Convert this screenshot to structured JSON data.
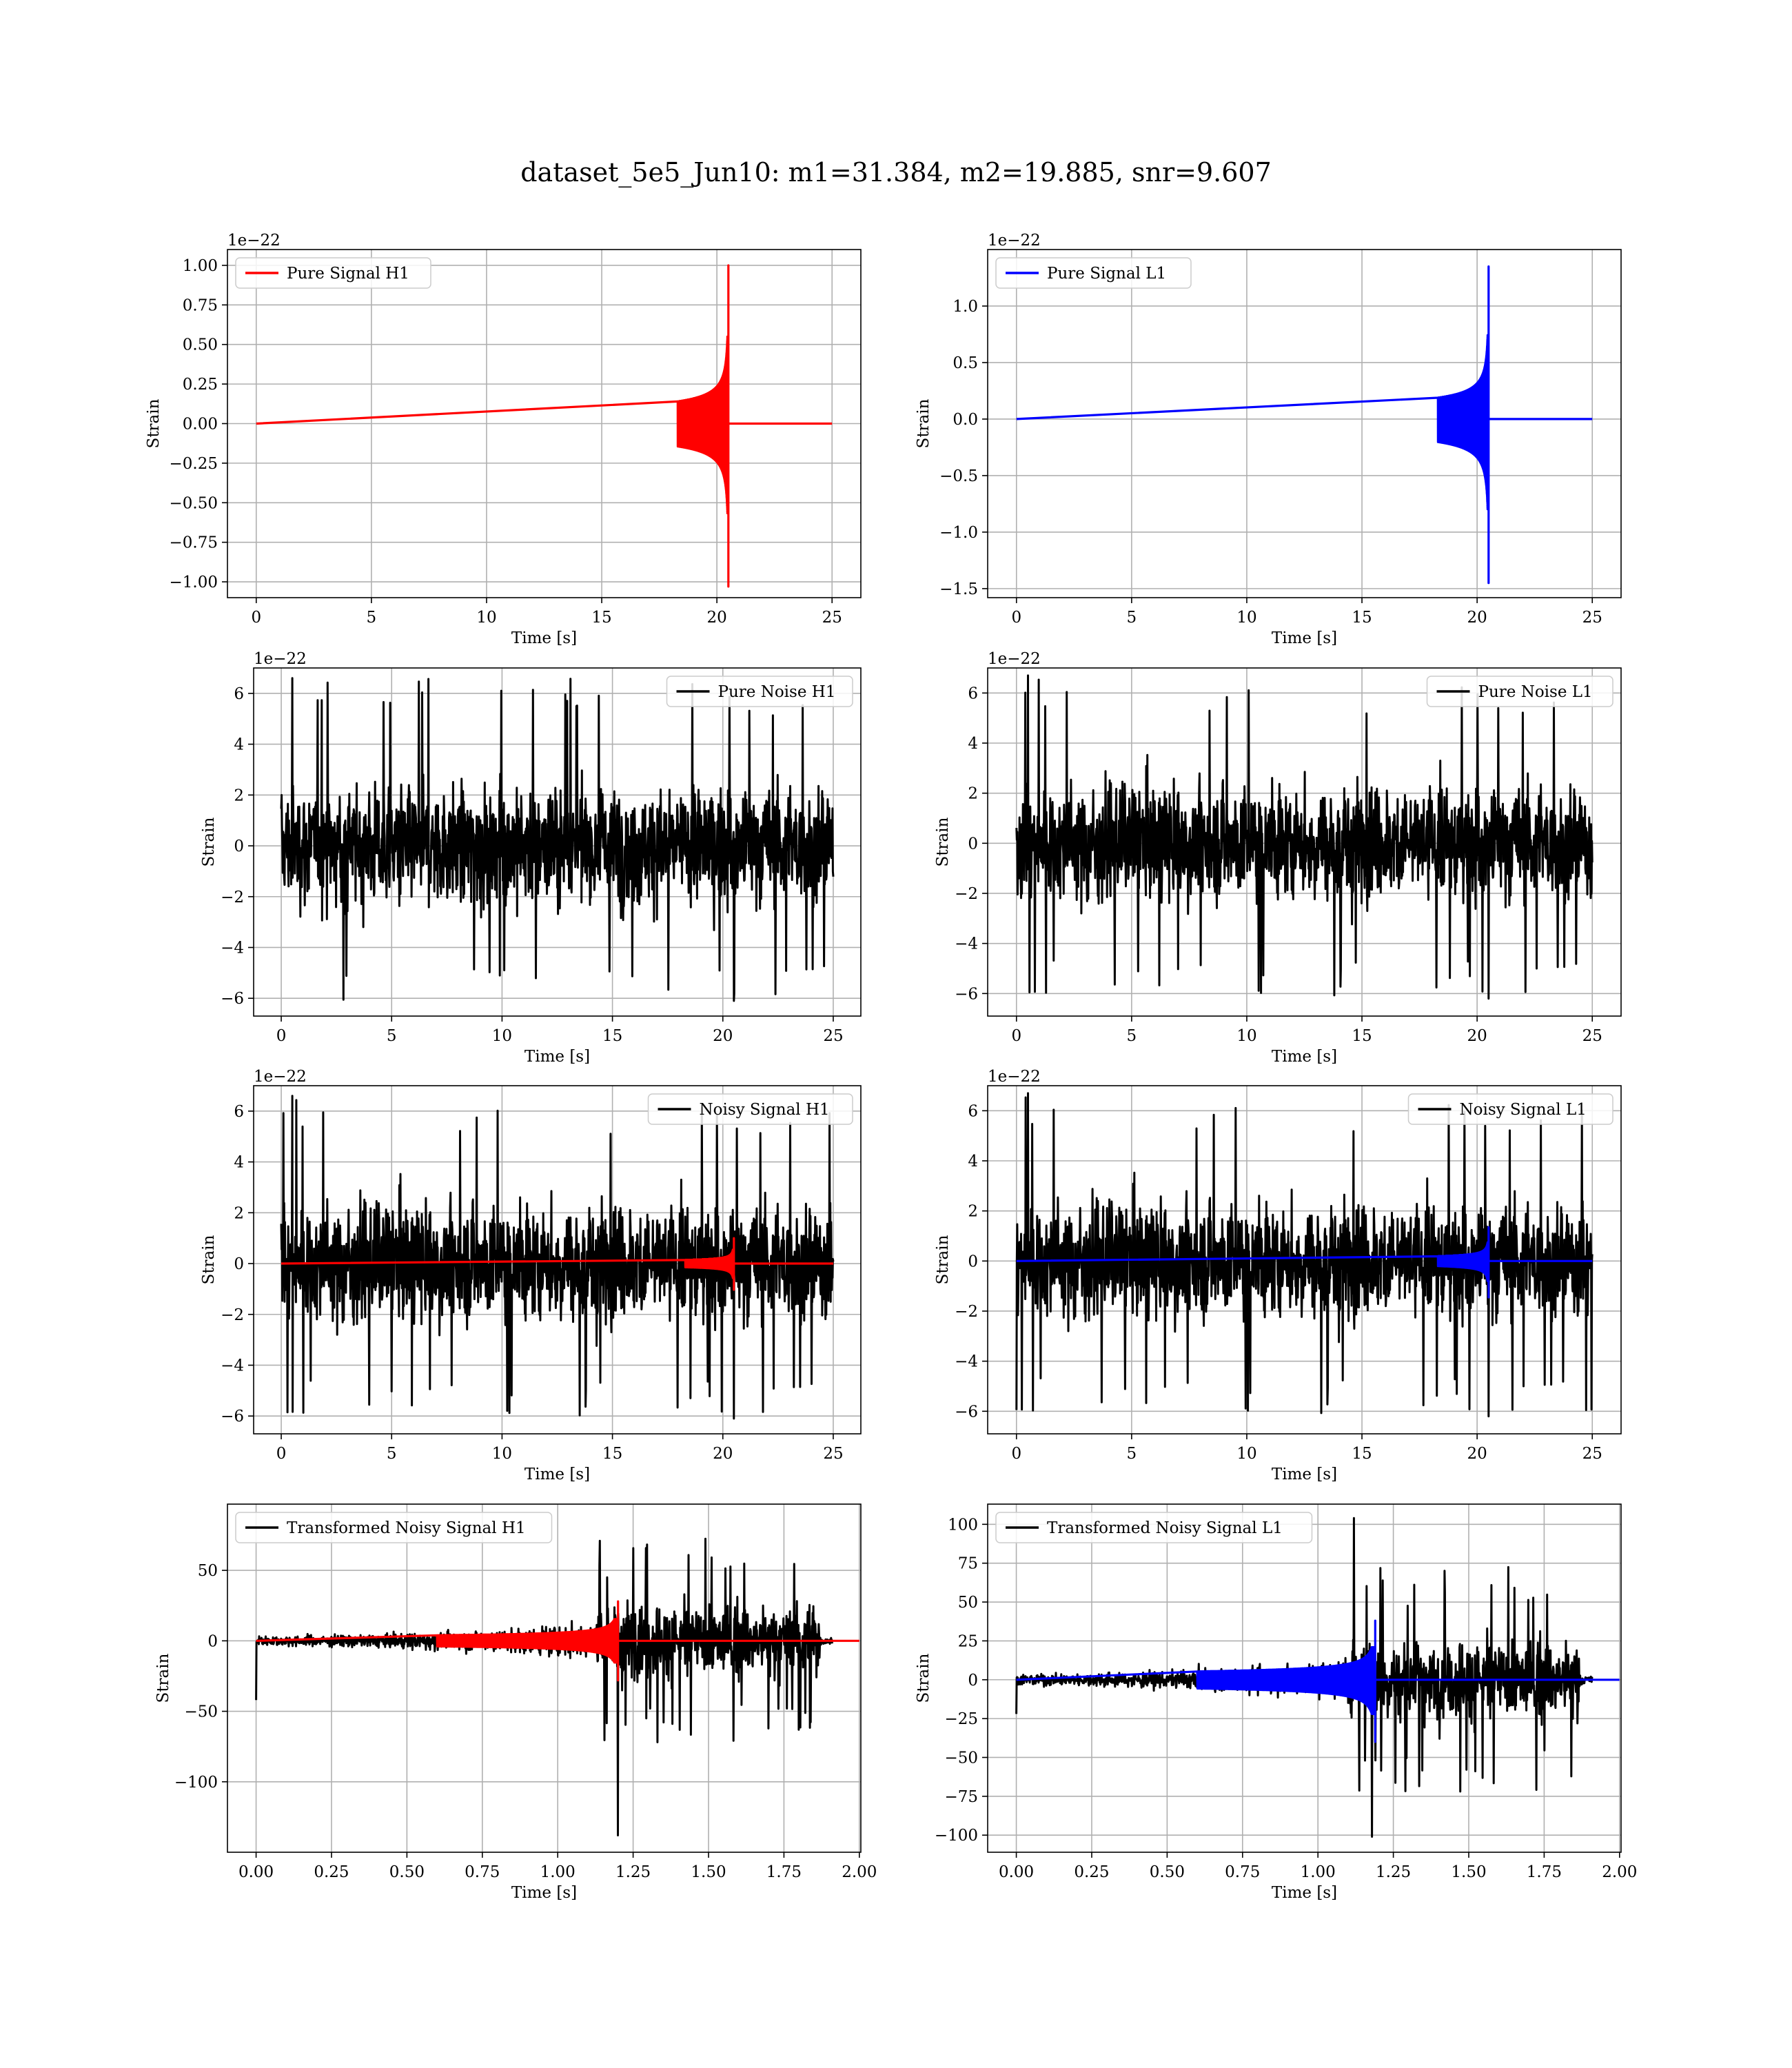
{
  "suptitle": "dataset_5e5_Jun10: m1=31.384, m2=19.885, snr=9.607",
  "chart_data": [
    {
      "type": "line",
      "legend": [
        "Pure Signal H1"
      ],
      "legend_loc": "upper-left",
      "series": [
        {
          "name": "Pure Signal H1",
          "color": "#ff0000",
          "kind": "chirp",
          "peak_time": 20.5,
          "pos_amp": 1.0,
          "neg_amp": -1.03
        }
      ],
      "xlabel": "Time [s]",
      "ylabel": "Strain",
      "offset": "1e−22",
      "xlim": [
        -1.25,
        26.25
      ],
      "ylim": [
        -1.1,
        1.1
      ],
      "xticks": [
        0,
        5,
        10,
        15,
        20,
        25
      ],
      "xticklabels": [
        "0",
        "5",
        "10",
        "15",
        "20",
        "25"
      ],
      "yticks": [
        1.0,
        0.75,
        0.5,
        0.25,
        0.0,
        -0.25,
        -0.5,
        -0.75,
        -1.0
      ],
      "yticklabels": [
        "1.00",
        "0.75",
        "0.50",
        "0.25",
        "0.00",
        "−0.25",
        "−0.50",
        "−0.75",
        "−1.00"
      ],
      "grid": true
    },
    {
      "type": "line",
      "legend": [
        "Pure Signal L1"
      ],
      "legend_loc": "upper-left",
      "series": [
        {
          "name": "Pure Signal L1",
          "color": "#0000ff",
          "kind": "chirp",
          "peak_time": 20.5,
          "pos_amp": 1.35,
          "neg_amp": -1.45
        }
      ],
      "xlabel": "Time [s]",
      "ylabel": "Strain",
      "offset": "1e−22",
      "xlim": [
        -1.25,
        26.25
      ],
      "ylim": [
        -1.58,
        1.5
      ],
      "xticks": [
        0,
        5,
        10,
        15,
        20,
        25
      ],
      "xticklabels": [
        "0",
        "5",
        "10",
        "15",
        "20",
        "25"
      ],
      "yticks": [
        1.0,
        0.5,
        0.0,
        -0.5,
        -1.0,
        -1.5
      ],
      "yticklabels": [
        "1.0",
        "0.5",
        "0.0",
        "−0.5",
        "−1.0",
        "−1.5"
      ],
      "grid": true
    },
    {
      "type": "line",
      "legend": [
        "Pure Noise H1"
      ],
      "legend_loc": "upper-right",
      "series": [
        {
          "name": "Pure Noise H1",
          "color": "#000000",
          "kind": "noise",
          "t_start": 0,
          "t_end": 25,
          "max": 6.6,
          "min": -6.1
        }
      ],
      "xlabel": "Time [s]",
      "ylabel": "Strain",
      "offset": "1e−22",
      "xlim": [
        -1.25,
        26.25
      ],
      "ylim": [
        -6.7,
        7.0
      ],
      "xticks": [
        0,
        5,
        10,
        15,
        20,
        25
      ],
      "xticklabels": [
        "0",
        "5",
        "10",
        "15",
        "20",
        "25"
      ],
      "yticks": [
        6,
        4,
        2,
        0,
        -2,
        -4,
        -6
      ],
      "yticklabels": [
        "6",
        "4",
        "2",
        "0",
        "−2",
        "−4",
        "−6"
      ],
      "grid": true
    },
    {
      "type": "line",
      "legend": [
        "Pure Noise L1"
      ],
      "legend_loc": "upper-right",
      "series": [
        {
          "name": "Pure Noise L1",
          "color": "#000000",
          "kind": "noise",
          "t_start": 0,
          "t_end": 25,
          "max": 6.7,
          "min": -6.2
        }
      ],
      "xlabel": "Time [s]",
      "ylabel": "Strain",
      "offset": "1e−22",
      "xlim": [
        -1.25,
        26.25
      ],
      "ylim": [
        -6.9,
        7.0
      ],
      "xticks": [
        0,
        5,
        10,
        15,
        20,
        25
      ],
      "xticklabels": [
        "0",
        "5",
        "10",
        "15",
        "20",
        "25"
      ],
      "yticks": [
        6,
        4,
        2,
        0,
        -2,
        -4,
        -6
      ],
      "yticklabels": [
        "6",
        "4",
        "2",
        "0",
        "−2",
        "−4",
        "−6"
      ],
      "grid": true
    },
    {
      "type": "line",
      "legend": [
        "Noisy Signal H1"
      ],
      "legend_loc": "upper-right",
      "series": [
        {
          "name": "Noisy Signal H1",
          "color": "#000000",
          "kind": "noise",
          "t_start": 0,
          "t_end": 25,
          "max": 6.6,
          "min": -6.1
        },
        {
          "color": "#ff0000",
          "kind": "chirp",
          "peak_time": 20.5,
          "pos_amp": 1.0,
          "neg_amp": -1.03
        }
      ],
      "xlabel": "Time [s]",
      "ylabel": "Strain",
      "offset": "1e−22",
      "xlim": [
        -1.25,
        26.25
      ],
      "ylim": [
        -6.7,
        7.0
      ],
      "xticks": [
        0,
        5,
        10,
        15,
        20,
        25
      ],
      "xticklabels": [
        "0",
        "5",
        "10",
        "15",
        "20",
        "25"
      ],
      "yticks": [
        6,
        4,
        2,
        0,
        -2,
        -4,
        -6
      ],
      "yticklabels": [
        "6",
        "4",
        "2",
        "0",
        "−2",
        "−4",
        "−6"
      ],
      "grid": true
    },
    {
      "type": "line",
      "legend": [
        "Noisy Signal L1"
      ],
      "legend_loc": "upper-right",
      "series": [
        {
          "name": "Noisy Signal L1",
          "color": "#000000",
          "kind": "noise",
          "t_start": 0,
          "t_end": 25,
          "max": 6.7,
          "min": -6.2
        },
        {
          "color": "#0000ff",
          "kind": "chirp",
          "peak_time": 20.5,
          "pos_amp": 1.35,
          "neg_amp": -1.45
        }
      ],
      "xlabel": "Time [s]",
      "ylabel": "Strain",
      "offset": "1e−22",
      "xlim": [
        -1.25,
        26.25
      ],
      "ylim": [
        -6.9,
        7.0
      ],
      "xticks": [
        0,
        5,
        10,
        15,
        20,
        25
      ],
      "xticklabels": [
        "0",
        "5",
        "10",
        "15",
        "20",
        "25"
      ],
      "yticks": [
        6,
        4,
        2,
        0,
        -2,
        -4,
        -6
      ],
      "yticklabels": [
        "6",
        "4",
        "2",
        "0",
        "−2",
        "−4",
        "−6"
      ],
      "grid": true
    },
    {
      "type": "line",
      "legend": [
        "Transformed Noisy Signal H1"
      ],
      "legend_loc": "upper-left",
      "series": [
        {
          "name": "Transformed Noisy Signal H1",
          "color": "#000000",
          "kind": "transformed",
          "t_start": 0,
          "t_end": 1.91,
          "burst_start": 1.12,
          "burst_end": 1.87,
          "max": 71,
          "min": -138,
          "spike_time": 0.0,
          "spike_value": -42
        },
        {
          "color": "#ff0000",
          "kind": "chirp",
          "peak_time": 1.2,
          "start_time": 0.6,
          "pos_amp": 28,
          "neg_amp": -28
        }
      ],
      "xlabel": "Time [s]",
      "ylabel": "Strain",
      "offset": "",
      "xlim": [
        -0.095,
        2.005
      ],
      "ylim": [
        -150,
        97
      ],
      "xticks": [
        0,
        0.25,
        0.5,
        0.75,
        1.0,
        1.25,
        1.5,
        1.75,
        2.0
      ],
      "xticklabels": [
        "0.00",
        "0.25",
        "0.50",
        "0.75",
        "1.00",
        "1.25",
        "1.50",
        "1.75",
        "2.00"
      ],
      "yticks": [
        50,
        0,
        -50,
        -100
      ],
      "yticklabels": [
        "50",
        "0",
        "−50",
        "−100"
      ],
      "grid": true
    },
    {
      "type": "line",
      "legend": [
        "Transformed Noisy Signal L1"
      ],
      "legend_loc": "upper-left",
      "series": [
        {
          "name": "Transformed Noisy Signal L1",
          "color": "#000000",
          "kind": "transformed",
          "t_start": 0,
          "t_end": 1.91,
          "burst_start": 1.1,
          "burst_end": 1.87,
          "max": 104,
          "min": -101,
          "spike_time": 0.0,
          "spike_value": -22
        },
        {
          "color": "#0000ff",
          "kind": "chirp",
          "peak_time": 1.19,
          "start_time": 0.6,
          "pos_amp": 38,
          "neg_amp": -40
        }
      ],
      "xlabel": "Time [s]",
      "ylabel": "Strain",
      "offset": "",
      "xlim": [
        -0.095,
        2.005
      ],
      "ylim": [
        -111,
        113
      ],
      "xticks": [
        0,
        0.25,
        0.5,
        0.75,
        1.0,
        1.25,
        1.5,
        1.75,
        2.0
      ],
      "xticklabels": [
        "0.00",
        "0.25",
        "0.50",
        "0.75",
        "1.00",
        "1.25",
        "1.50",
        "1.75",
        "2.00"
      ],
      "yticks": [
        100,
        75,
        50,
        25,
        0,
        -25,
        -50,
        -75,
        -100
      ],
      "yticklabels": [
        "100",
        "75",
        "50",
        "25",
        "0",
        "−25",
        "−50",
        "−75",
        "−100"
      ],
      "grid": true
    }
  ]
}
